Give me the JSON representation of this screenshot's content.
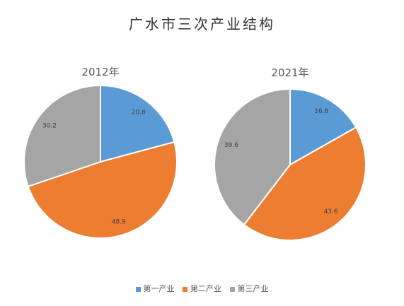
{
  "chart_data": [
    {
      "type": "pie",
      "title": "2012年",
      "categories": [
        "第一产业",
        "第二产业",
        "第三产业"
      ],
      "values": [
        20.8,
        48.9,
        30.2
      ]
    },
    {
      "type": "pie",
      "title": "2021年",
      "categories": [
        "第一产业",
        "第二产业",
        "第三产业"
      ],
      "values": [
        16.8,
        43.6,
        39.6
      ]
    }
  ],
  "figure": {
    "title": "广水市三次产业结构",
    "legend": [
      "第一产业",
      "第二产业",
      "第三产业"
    ],
    "legend_position": "bottom"
  },
  "colors": [
    "#5B9BD5",
    "#ED7D31",
    "#A5A5A5"
  ]
}
